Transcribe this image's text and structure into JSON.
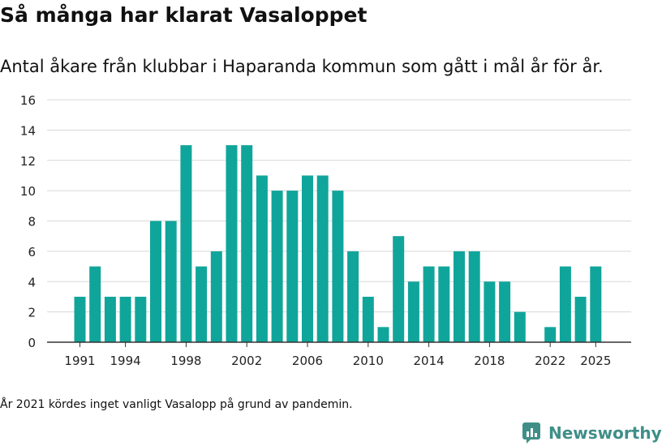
{
  "title": "Så många har klarat Vasaloppet",
  "subtitle": "Antal åkare från klubbar i Haparanda kommun som gått i mål år för år.",
  "note": "År 2021 kördes inget vanligt Vasalopp på grund av pandemin.",
  "brand": {
    "name": "Newsworthy",
    "icon": "newsworthy-logo-icon"
  },
  "colors": {
    "bar": "#10a59b",
    "grid": "#d8d8d8",
    "axis": "#333333",
    "brand": "#3f8f88"
  },
  "chart_data": {
    "type": "bar",
    "title": "Så många har klarat Vasaloppet",
    "xlabel": "",
    "ylabel": "",
    "ylim": [
      0,
      16
    ],
    "yticks": [
      0,
      2,
      4,
      6,
      8,
      10,
      12,
      14,
      16
    ],
    "xtick_labels": [
      "1991",
      "1994",
      "1998",
      "2002",
      "2006",
      "2010",
      "2014",
      "2018",
      "2022",
      "2025"
    ],
    "grid": true,
    "categories": [
      1991,
      1992,
      1993,
      1994,
      1995,
      1996,
      1997,
      1998,
      1999,
      2000,
      2001,
      2002,
      2003,
      2004,
      2005,
      2006,
      2007,
      2008,
      2009,
      2010,
      2011,
      2012,
      2013,
      2014,
      2015,
      2016,
      2017,
      2018,
      2019,
      2020,
      2021,
      2022,
      2023,
      2024,
      2025
    ],
    "values": [
      3,
      5,
      3,
      3,
      3,
      8,
      8,
      13,
      5,
      6,
      13,
      13,
      11,
      10,
      10,
      11,
      11,
      10,
      6,
      3,
      1,
      7,
      4,
      5,
      5,
      6,
      6,
      4,
      4,
      2,
      0,
      1,
      5,
      3,
      5
    ]
  }
}
